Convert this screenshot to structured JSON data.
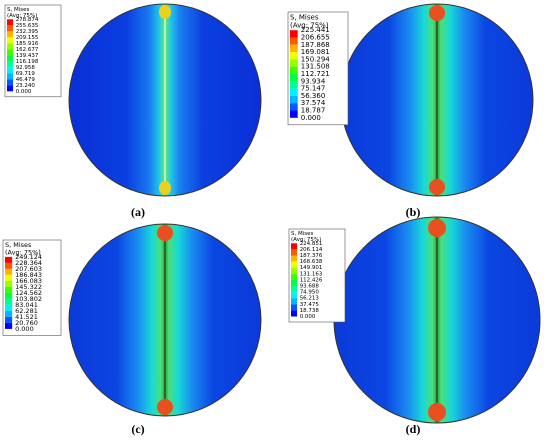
{
  "panels": [
    {
      "label": "(a)",
      "legend": {
        "title": "S, Mises",
        "subtitle": "(Avg: 75%)",
        "values": [
          "278.874",
          "255.635",
          "232.395",
          "209.155",
          "185.916",
          "162.677",
          "139.437",
          "116.198",
          "92.958",
          "69.719",
          "46.479",
          "23.240",
          "0.000"
        ]
      }
    },
    {
      "label": "(b)",
      "legend": {
        "title": "S, Mises",
        "subtitle": "(Avg: 75%)",
        "values": [
          "225.441",
          "206.655",
          "187.868",
          "169.081",
          "150.294",
          "131.508",
          "112.721",
          "93.934",
          "75.147",
          "56.360",
          "37.574",
          "18.787",
          "0.000"
        ]
      }
    },
    {
      "label": "(c)",
      "legend": {
        "title": "S, Mises",
        "subtitle": "(Avg: 75%)",
        "values": [
          "249.124",
          "228.364",
          "207.603",
          "186.843",
          "166.083",
          "145.322",
          "124.562",
          "103.802",
          "83.041",
          "62.281",
          "41.521",
          "20.760",
          "0.000"
        ]
      }
    },
    {
      "label": "(d)",
      "legend": {
        "title": "S, Mises",
        "subtitle": "(Avg: 75%)",
        "values": [
          "224.851",
          "206.114",
          "187.376",
          "168.638",
          "149.901",
          "131.163",
          "112.426",
          "93.688",
          "74.950",
          "56.213",
          "37.475",
          "18.738",
          "0.000"
        ]
      }
    }
  ]
}
